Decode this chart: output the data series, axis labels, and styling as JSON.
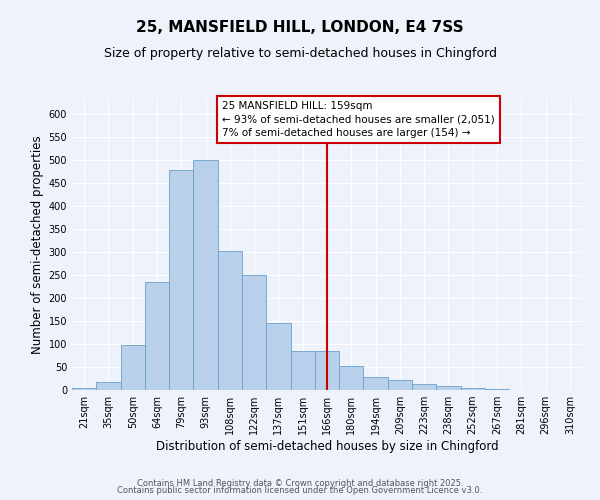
{
  "title": "25, MANSFIELD HILL, LONDON, E4 7SS",
  "subtitle": "Size of property relative to semi-detached houses in Chingford",
  "xlabel": "Distribution of semi-detached houses by size in Chingford",
  "ylabel": "Number of semi-detached properties",
  "bar_labels": [
    "21sqm",
    "35sqm",
    "50sqm",
    "64sqm",
    "79sqm",
    "93sqm",
    "108sqm",
    "122sqm",
    "137sqm",
    "151sqm",
    "166sqm",
    "180sqm",
    "194sqm",
    "209sqm",
    "223sqm",
    "238sqm",
    "252sqm",
    "267sqm",
    "281sqm",
    "296sqm",
    "310sqm"
  ],
  "bar_heights": [
    5,
    18,
    97,
    235,
    478,
    500,
    302,
    250,
    145,
    85,
    85,
    52,
    28,
    22,
    12,
    8,
    5,
    2,
    1,
    0,
    1
  ],
  "bar_color": "#b8d0ea",
  "bar_edge_color": "#6aa0cc",
  "vline_x": 10.0,
  "ann_line1": "25 MANSFIELD HILL: 159sqm",
  "ann_line2": "← 93% of semi-detached houses are smaller (2,051)",
  "ann_line3": "7% of semi-detached houses are larger (154) →",
  "ylim": [
    0,
    630
  ],
  "yticks": [
    0,
    50,
    100,
    150,
    200,
    250,
    300,
    350,
    400,
    450,
    500,
    550,
    600
  ],
  "background_color": "#eef2fb",
  "grid_color": "#ffffff",
  "annotation_box_color": "#cc0000",
  "title_fontsize": 11,
  "subtitle_fontsize": 9,
  "axis_label_fontsize": 8.5,
  "tick_fontsize": 7,
  "ann_fontsize": 7.5,
  "footer_fontsize": 6,
  "footer_line1": "Contains HM Land Registry data © Crown copyright and database right 2025.",
  "footer_line2": "Contains public sector information licensed under the Open Government Licence v3.0."
}
